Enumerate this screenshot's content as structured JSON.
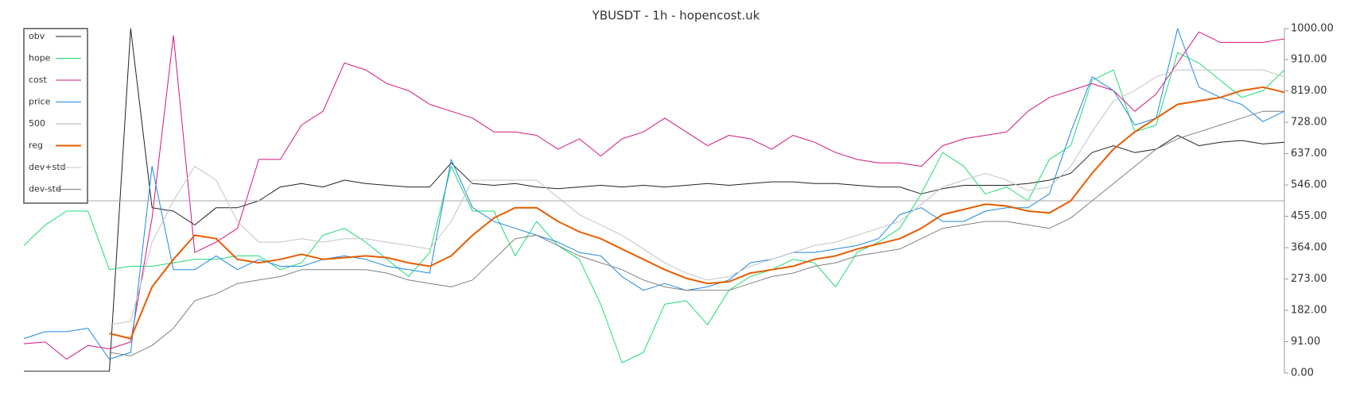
{
  "chart_data": {
    "type": "line",
    "title": "YBUSDT - 1h - hopencost.uk",
    "categories": [
      null,
      null,
      null,
      null,
      null,
      null,
      null,
      null,
      null,
      null,
      null,
      null,
      null,
      null,
      null,
      null,
      null,
      null,
      null,
      null,
      null,
      null,
      null,
      null,
      null,
      null,
      null,
      null,
      null,
      null,
      null,
      null,
      null,
      null,
      null,
      null,
      null,
      null,
      null,
      null,
      null,
      null,
      null,
      null,
      null,
      null,
      null,
      null,
      null,
      null,
      null,
      null,
      null,
      null,
      null,
      null,
      null,
      null,
      null,
      null
    ],
    "ylim": [
      0,
      1000
    ],
    "yticks": [
      {
        "value": 0,
        "label": "0.00"
      },
      {
        "value": 91,
        "label": "91.00"
      },
      {
        "value": 182,
        "label": "182.00"
      },
      {
        "value": 273,
        "label": "273.00"
      },
      {
        "value": 364,
        "label": "364.00"
      },
      {
        "value": 455,
        "label": "455.00"
      },
      {
        "value": 546,
        "label": "546.00"
      },
      {
        "value": 637,
        "label": "637.00"
      },
      {
        "value": 728,
        "label": "728.00"
      },
      {
        "value": 819,
        "label": "819.00"
      },
      {
        "value": 910,
        "label": "910.00"
      },
      {
        "value": 1000,
        "label": "1000.00"
      }
    ],
    "y_axis_side": "right",
    "grid": false,
    "legend": "upper left",
    "series": [
      {
        "name": "obv",
        "color": "#222222",
        "width": 1,
        "values": [
          5,
          5,
          5,
          5,
          5,
          1000,
          480,
          470,
          430,
          480,
          480,
          500,
          540,
          550,
          540,
          560,
          550,
          545,
          540,
          540,
          610,
          550,
          545,
          550,
          540,
          535,
          540,
          545,
          540,
          545,
          540,
          545,
          550,
          545,
          550,
          555,
          555,
          550,
          550,
          545,
          540,
          540,
          520,
          535,
          545,
          545,
          545,
          550,
          560,
          580,
          640,
          660,
          640,
          650,
          690,
          660,
          670,
          675,
          665,
          670
        ]
      },
      {
        "name": "hope",
        "color": "#1fdc74",
        "width": 1,
        "values": [
          370,
          430,
          470,
          470,
          300,
          310,
          310,
          320,
          330,
          330,
          340,
          340,
          300,
          320,
          400,
          420,
          380,
          330,
          280,
          350,
          600,
          470,
          470,
          340,
          440,
          370,
          330,
          200,
          30,
          60,
          200,
          210,
          140,
          240,
          280,
          300,
          330,
          320,
          250,
          350,
          380,
          420,
          520,
          640,
          600,
          520,
          540,
          500,
          620,
          660,
          850,
          880,
          700,
          720,
          930,
          900,
          850,
          800,
          820,
          880
        ]
      },
      {
        "name": "cost",
        "color": "#d6157e",
        "width": 1,
        "values": [
          85,
          90,
          40,
          80,
          70,
          90,
          450,
          980,
          350,
          380,
          420,
          620,
          620,
          720,
          760,
          900,
          880,
          840,
          820,
          780,
          760,
          740,
          700,
          700,
          690,
          650,
          680,
          630,
          680,
          700,
          740,
          700,
          660,
          690,
          680,
          650,
          690,
          670,
          640,
          620,
          610,
          610,
          600,
          660,
          680,
          690,
          700,
          760,
          800,
          820,
          840,
          820,
          760,
          810,
          900,
          990,
          960,
          960,
          960,
          970
        ]
      },
      {
        "name": "price",
        "color": "#1e88e5",
        "width": 1,
        "values": [
          100,
          120,
          120,
          130,
          40,
          60,
          600,
          300,
          300,
          340,
          300,
          330,
          310,
          310,
          330,
          340,
          330,
          310,
          300,
          290,
          620,
          480,
          440,
          420,
          400,
          380,
          350,
          340,
          280,
          240,
          260,
          240,
          250,
          270,
          320,
          330,
          350,
          350,
          360,
          370,
          390,
          460,
          480,
          440,
          440,
          470,
          480,
          480,
          520,
          700,
          860,
          820,
          720,
          740,
          1000,
          830,
          800,
          780,
          730,
          760
        ]
      },
      {
        "name": "500",
        "color": "#aaaaaa",
        "width": 1,
        "values": [
          500,
          500,
          500,
          500,
          500,
          500,
          500,
          500,
          500,
          500,
          500,
          500,
          500,
          500,
          500,
          500,
          500,
          500,
          500,
          500,
          500,
          500,
          500,
          500,
          500,
          500,
          500,
          500,
          500,
          500,
          500,
          500,
          500,
          500,
          500,
          500,
          500,
          500,
          500,
          500,
          500,
          500,
          500,
          500,
          500,
          500,
          500,
          500,
          500,
          500,
          500,
          500,
          500,
          500,
          500,
          500,
          500,
          500,
          500,
          500
        ]
      },
      {
        "name": "reg",
        "color": "#e65c00",
        "width": 2,
        "values": [
          null,
          null,
          null,
          null,
          115,
          100,
          250,
          330,
          400,
          390,
          330,
          320,
          330,
          345,
          330,
          335,
          340,
          335,
          320,
          310,
          340,
          400,
          450,
          480,
          480,
          440,
          410,
          390,
          360,
          330,
          300,
          275,
          260,
          265,
          290,
          300,
          310,
          330,
          340,
          360,
          375,
          390,
          420,
          460,
          475,
          490,
          485,
          470,
          465,
          500,
          580,
          650,
          700,
          740,
          780,
          790,
          800,
          820,
          830,
          815
        ]
      },
      {
        "name": "dev+std",
        "color": "#c4c4c4",
        "width": 1,
        "values": [
          null,
          null,
          null,
          null,
          140,
          150,
          380,
          500,
          600,
          560,
          440,
          380,
          380,
          390,
          380,
          390,
          390,
          380,
          370,
          360,
          440,
          560,
          560,
          560,
          560,
          510,
          460,
          430,
          400,
          360,
          320,
          290,
          270,
          280,
          310,
          330,
          350,
          370,
          380,
          400,
          420,
          440,
          490,
          540,
          560,
          580,
          560,
          530,
          540,
          600,
          700,
          790,
          820,
          860,
          880,
          880,
          880,
          880,
          880,
          860
        ]
      },
      {
        "name": "dev-std",
        "color": "#808080",
        "width": 1,
        "values": [
          null,
          null,
          null,
          null,
          60,
          50,
          80,
          130,
          210,
          230,
          260,
          270,
          280,
          300,
          300,
          300,
          300,
          290,
          270,
          260,
          250,
          270,
          330,
          390,
          400,
          370,
          340,
          320,
          300,
          270,
          250,
          240,
          240,
          240,
          260,
          280,
          290,
          310,
          320,
          340,
          350,
          360,
          390,
          420,
          430,
          440,
          440,
          430,
          420,
          450,
          500,
          550,
          600,
          650,
          680,
          700,
          720,
          740,
          760,
          760
        ]
      }
    ]
  }
}
